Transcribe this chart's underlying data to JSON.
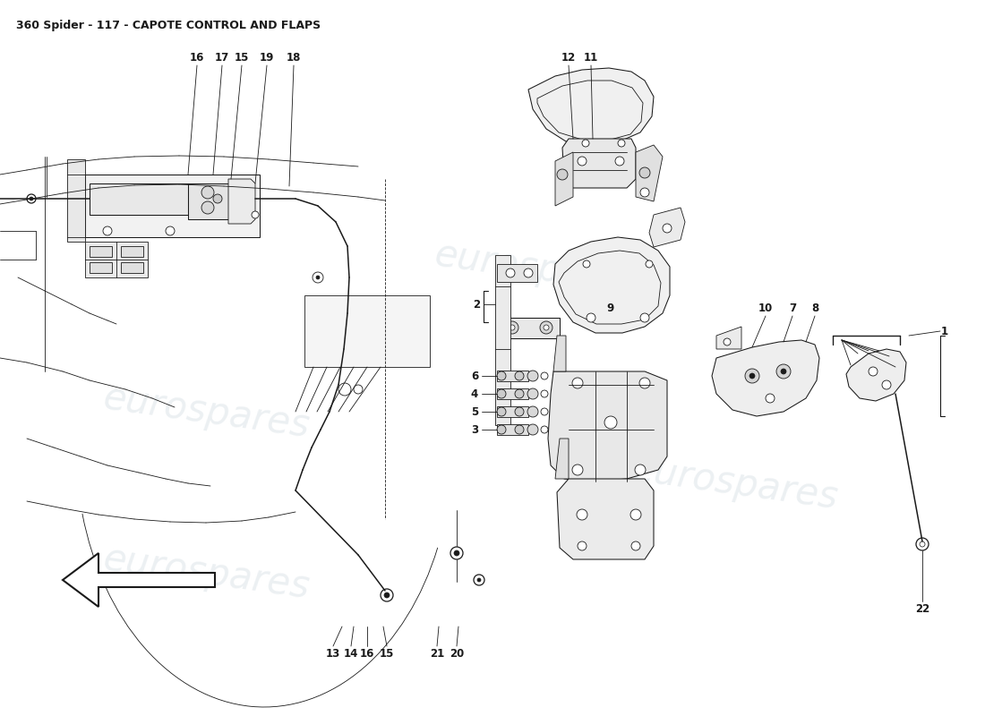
{
  "title": "360 Spider - 117 - CAPOTE CONTROL AND FLAPS",
  "bg_color": "#ffffff",
  "line_color": "#1a1a1a",
  "watermark_text": "eurospares",
  "watermark_color": "#c8d4dc",
  "watermark_alpha": 0.35,
  "fig_width": 11.0,
  "fig_height": 8.0,
  "dpi": 100
}
